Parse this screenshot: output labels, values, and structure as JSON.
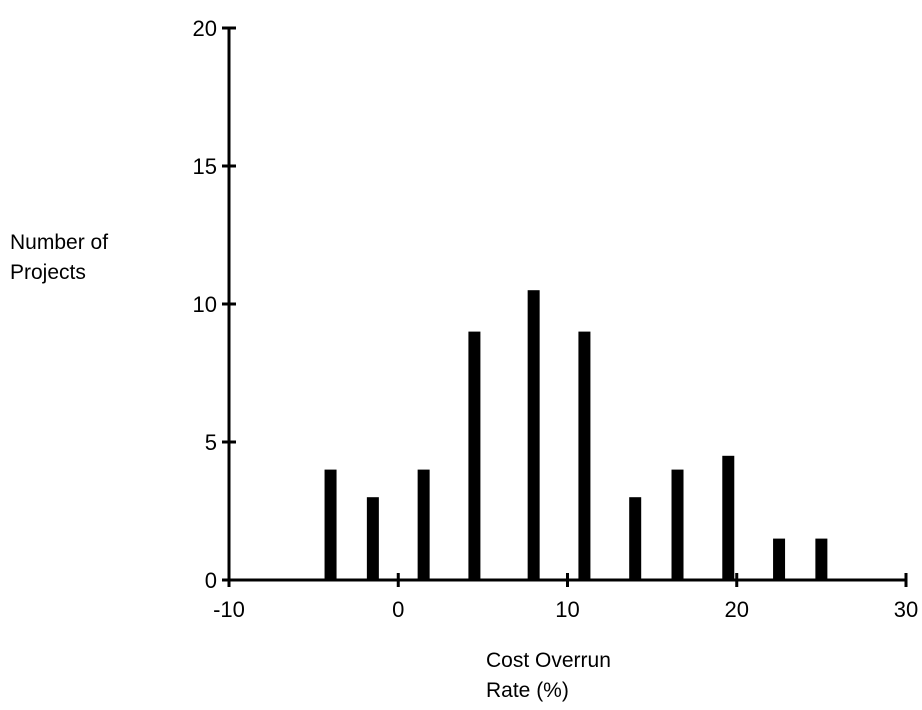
{
  "chart_data": {
    "type": "bar",
    "title": "",
    "ylabel_lines": [
      "Number of",
      "Projects"
    ],
    "xlabel_lines": [
      "Cost Overrun",
      "Rate (%)"
    ],
    "x": [
      -4,
      -1.5,
      1.5,
      4.5,
      8,
      11,
      14,
      16.5,
      19.5,
      22.5,
      25
    ],
    "values": [
      4,
      3,
      4,
      9,
      10.5,
      9,
      3,
      4,
      4.5,
      1.5,
      1.5
    ],
    "xlim": [
      -10,
      30
    ],
    "ylim": [
      0,
      20
    ],
    "xticks": [
      -10,
      0,
      10,
      20,
      30
    ],
    "yticks": [
      0,
      5,
      10,
      15,
      20
    ],
    "grid": false,
    "bar_color": "#000000"
  }
}
